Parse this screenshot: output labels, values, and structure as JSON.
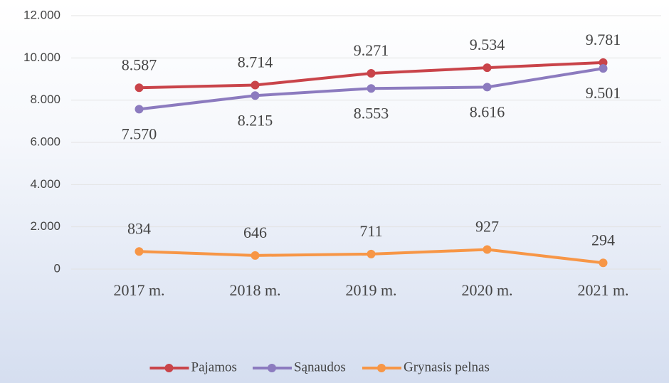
{
  "chart_data": {
    "type": "line",
    "categories": [
      "2017 m.",
      "2018 m.",
      "2019 m.",
      "2020 m.",
      "2021 m."
    ],
    "series": [
      {
        "name": "Pajamos",
        "color": "#c9444a",
        "values": [
          8587,
          8714,
          9271,
          9534,
          9781
        ],
        "value_labels": [
          "8.587",
          "8.714",
          "9.271",
          "9.534",
          "9.781"
        ]
      },
      {
        "name": "Sąnaudos",
        "color": "#8c7bbf",
        "values": [
          7570,
          8215,
          8553,
          8616,
          9501
        ],
        "value_labels": [
          "7.570",
          "8.215",
          "8.553",
          "8.616",
          "9.501"
        ]
      },
      {
        "name": "Grynasis pelnas",
        "color": "#f79646",
        "values": [
          834,
          646,
          711,
          927,
          294
        ]
      }
    ],
    "ylim": [
      0,
      12000
    ],
    "yticks": [
      0,
      {
        "value": 2000,
        "label": "2.000"
      },
      {
        "value": 4000,
        "label": "4.000"
      },
      {
        "value": 6000,
        "label": "6.000"
      },
      {
        "value": 8000,
        "label": "8.000"
      },
      {
        "value": 10000,
        "label": "10.000"
      },
      {
        "value": 12000,
        "label": "12.000"
      }
    ],
    "grid": true,
    "legend": "bottom"
  }
}
